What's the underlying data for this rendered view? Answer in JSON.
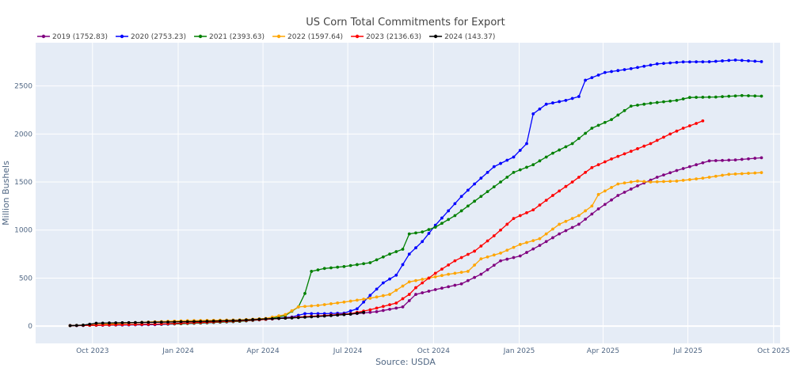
{
  "chart_data": {
    "type": "line",
    "title": "US Corn Total Commitments for Export",
    "xlabel": "Source: USDA",
    "ylabel": "Million Bushels",
    "x_range": [
      "2023-08-01",
      "2025-10-08"
    ],
    "ylim": [
      -180,
      2950
    ],
    "y_ticks": [
      0,
      500,
      1000,
      1500,
      2000,
      2500
    ],
    "x_ticks": [
      {
        "date": "2023-10-01",
        "label": "Oct 2023"
      },
      {
        "date": "2024-01-01",
        "label": "Jan 2024"
      },
      {
        "date": "2024-04-01",
        "label": "Apr 2024"
      },
      {
        "date": "2024-07-01",
        "label": "Jul 2024"
      },
      {
        "date": "2024-10-01",
        "label": "Oct 2024"
      },
      {
        "date": "2025-01-01",
        "label": "Jan 2025"
      },
      {
        "date": "2025-04-01",
        "label": "Apr 2025"
      },
      {
        "date": "2025-07-01",
        "label": "Jul 2025"
      },
      {
        "date": "2025-10-01",
        "label": "Oct 2025"
      }
    ],
    "grid": true,
    "legend_position": "top-left",
    "background": "#e5ecf6",
    "series": [
      {
        "name": "2019 (1752.83)",
        "color": "#800080",
        "points": [
          [
            "2023-09-07",
            5
          ],
          [
            "2023-10-05",
            8
          ],
          [
            "2023-11-02",
            12
          ],
          [
            "2023-12-07",
            20
          ],
          [
            "2024-01-04",
            30
          ],
          [
            "2024-02-01",
            40
          ],
          [
            "2024-03-07",
            55
          ],
          [
            "2024-04-04",
            70
          ],
          [
            "2024-05-02",
            88
          ],
          [
            "2024-06-06",
            105
          ],
          [
            "2024-07-04",
            125
          ],
          [
            "2024-08-01",
            150
          ],
          [
            "2024-08-29",
            200
          ],
          [
            "2024-09-12",
            330
          ],
          [
            "2024-10-03",
            380
          ],
          [
            "2024-10-31",
            440
          ],
          [
            "2024-11-21",
            540
          ],
          [
            "2024-12-12",
            680
          ],
          [
            "2025-01-02",
            730
          ],
          [
            "2025-01-23",
            840
          ],
          [
            "2025-02-13",
            960
          ],
          [
            "2025-03-06",
            1060
          ],
          [
            "2025-03-27",
            1220
          ],
          [
            "2025-04-17",
            1360
          ],
          [
            "2025-05-08",
            1460
          ],
          [
            "2025-05-29",
            1550
          ],
          [
            "2025-06-19",
            1620
          ],
          [
            "2025-07-10",
            1680
          ],
          [
            "2025-07-24",
            1720
          ],
          [
            "2025-08-21",
            1730
          ],
          [
            "2025-09-18",
            1752.83
          ]
        ]
      },
      {
        "name": "2020 (2753.23)",
        "color": "#0000ff",
        "points": [
          [
            "2023-09-07",
            5
          ],
          [
            "2023-10-05",
            10
          ],
          [
            "2023-11-02",
            12
          ],
          [
            "2023-12-07",
            15
          ],
          [
            "2024-01-04",
            25
          ],
          [
            "2024-02-01",
            35
          ],
          [
            "2024-03-07",
            50
          ],
          [
            "2024-04-04",
            70
          ],
          [
            "2024-05-02",
            95
          ],
          [
            "2024-05-16",
            130
          ],
          [
            "2024-06-06",
            130
          ],
          [
            "2024-06-27",
            135
          ],
          [
            "2024-07-11",
            180
          ],
          [
            "2024-07-25",
            320
          ],
          [
            "2024-08-08",
            450
          ],
          [
            "2024-08-22",
            530
          ],
          [
            "2024-09-05",
            750
          ],
          [
            "2024-09-19",
            880
          ],
          [
            "2024-10-03",
            1050
          ],
          [
            "2024-10-17",
            1200
          ],
          [
            "2024-10-31",
            1350
          ],
          [
            "2024-11-14",
            1480
          ],
          [
            "2024-12-05",
            1660
          ],
          [
            "2024-12-26",
            1760
          ],
          [
            "2025-01-09",
            1900
          ],
          [
            "2025-01-16",
            2210
          ],
          [
            "2025-01-30",
            2310
          ],
          [
            "2025-02-20",
            2350
          ],
          [
            "2025-03-06",
            2390
          ],
          [
            "2025-03-13",
            2560
          ],
          [
            "2025-04-03",
            2640
          ],
          [
            "2025-05-01",
            2680
          ],
          [
            "2025-05-29",
            2730
          ],
          [
            "2025-06-26",
            2750
          ],
          [
            "2025-07-24",
            2752
          ],
          [
            "2025-08-21",
            2770
          ],
          [
            "2025-09-18",
            2753.23
          ]
        ]
      },
      {
        "name": "2021 (2393.63)",
        "color": "#008000",
        "points": [
          [
            "2023-09-07",
            5
          ],
          [
            "2023-10-05",
            10
          ],
          [
            "2023-11-02",
            15
          ],
          [
            "2023-12-07",
            20
          ],
          [
            "2024-01-04",
            25
          ],
          [
            "2024-02-01",
            35
          ],
          [
            "2024-03-07",
            50
          ],
          [
            "2024-04-04",
            70
          ],
          [
            "2024-04-25",
            110
          ],
          [
            "2024-05-09",
            200
          ],
          [
            "2024-05-16",
            340
          ],
          [
            "2024-05-23",
            570
          ],
          [
            "2024-06-06",
            600
          ],
          [
            "2024-06-27",
            620
          ],
          [
            "2024-07-25",
            660
          ],
          [
            "2024-08-15",
            750
          ],
          [
            "2024-08-29",
            800
          ],
          [
            "2024-09-05",
            960
          ],
          [
            "2024-09-19",
            980
          ],
          [
            "2024-10-03",
            1030
          ],
          [
            "2024-10-24",
            1150
          ],
          [
            "2024-11-14",
            1300
          ],
          [
            "2024-12-05",
            1450
          ],
          [
            "2024-12-26",
            1600
          ],
          [
            "2025-01-16",
            1680
          ],
          [
            "2025-02-06",
            1800
          ],
          [
            "2025-02-27",
            1900
          ],
          [
            "2025-03-20",
            2060
          ],
          [
            "2025-04-10",
            2150
          ],
          [
            "2025-05-01",
            2290
          ],
          [
            "2025-05-22",
            2320
          ],
          [
            "2025-06-19",
            2350
          ],
          [
            "2025-07-03",
            2380
          ],
          [
            "2025-07-31",
            2385
          ],
          [
            "2025-08-28",
            2400
          ],
          [
            "2025-09-18",
            2393.63
          ]
        ]
      },
      {
        "name": "2022 (1597.64)",
        "color": "#ffa500",
        "points": [
          [
            "2023-09-07",
            5
          ],
          [
            "2023-10-05",
            15
          ],
          [
            "2023-11-02",
            30
          ],
          [
            "2023-12-07",
            45
          ],
          [
            "2024-01-04",
            55
          ],
          [
            "2024-02-01",
            60
          ],
          [
            "2024-03-07",
            65
          ],
          [
            "2024-04-04",
            80
          ],
          [
            "2024-04-25",
            120
          ],
          [
            "2024-05-09",
            200
          ],
          [
            "2024-05-30",
            215
          ],
          [
            "2024-06-27",
            250
          ],
          [
            "2024-07-25",
            290
          ],
          [
            "2024-08-15",
            330
          ],
          [
            "2024-09-05",
            460
          ],
          [
            "2024-09-26",
            500
          ],
          [
            "2024-10-17",
            540
          ],
          [
            "2024-11-07",
            570
          ],
          [
            "2024-11-21",
            700
          ],
          [
            "2024-12-12",
            760
          ],
          [
            "2025-01-02",
            850
          ],
          [
            "2025-01-23",
            910
          ],
          [
            "2025-02-13",
            1060
          ],
          [
            "2025-03-06",
            1150
          ],
          [
            "2025-03-20",
            1250
          ],
          [
            "2025-03-27",
            1370
          ],
          [
            "2025-04-17",
            1480
          ],
          [
            "2025-05-08",
            1510
          ],
          [
            "2025-05-22",
            1500
          ],
          [
            "2025-06-19",
            1510
          ],
          [
            "2025-07-17",
            1540
          ],
          [
            "2025-08-14",
            1580
          ],
          [
            "2025-09-18",
            1597.64
          ]
        ]
      },
      {
        "name": "2023 (2136.63)",
        "color": "#ff0000",
        "points": [
          [
            "2023-09-07",
            5
          ],
          [
            "2023-10-05",
            10
          ],
          [
            "2023-11-02",
            15
          ],
          [
            "2023-12-07",
            20
          ],
          [
            "2024-01-04",
            30
          ],
          [
            "2024-02-01",
            40
          ],
          [
            "2024-03-07",
            55
          ],
          [
            "2024-04-04",
            70
          ],
          [
            "2024-05-02",
            90
          ],
          [
            "2024-06-06",
            110
          ],
          [
            "2024-07-04",
            130
          ],
          [
            "2024-07-25",
            170
          ],
          [
            "2024-08-22",
            240
          ],
          [
            "2024-09-05",
            330
          ],
          [
            "2024-09-12",
            400
          ],
          [
            "2024-10-03",
            550
          ],
          [
            "2024-10-24",
            680
          ],
          [
            "2024-11-14",
            780
          ],
          [
            "2024-12-05",
            940
          ],
          [
            "2024-12-26",
            1120
          ],
          [
            "2025-01-16",
            1210
          ],
          [
            "2025-02-06",
            1360
          ],
          [
            "2025-02-27",
            1500
          ],
          [
            "2025-03-20",
            1650
          ],
          [
            "2025-04-10",
            1740
          ],
          [
            "2025-05-01",
            1820
          ],
          [
            "2025-05-22",
            1900
          ],
          [
            "2025-06-12",
            2000
          ],
          [
            "2025-06-26",
            2060
          ],
          [
            "2025-07-10",
            2110
          ],
          [
            "2025-07-17",
            2136.63
          ]
        ]
      },
      {
        "name": "2024 (143.37)",
        "color": "#000000",
        "points": [
          [
            "2023-09-07",
            5
          ],
          [
            "2023-09-21",
            10
          ],
          [
            "2023-10-05",
            30
          ],
          [
            "2023-11-02",
            35
          ],
          [
            "2023-12-07",
            40
          ],
          [
            "2024-01-04",
            45
          ],
          [
            "2024-02-01",
            50
          ],
          [
            "2024-03-07",
            60
          ],
          [
            "2024-04-04",
            75
          ],
          [
            "2024-05-02",
            85
          ],
          [
            "2024-06-06",
            105
          ],
          [
            "2024-07-04",
            125
          ],
          [
            "2024-07-18",
            143.37
          ]
        ]
      }
    ]
  }
}
